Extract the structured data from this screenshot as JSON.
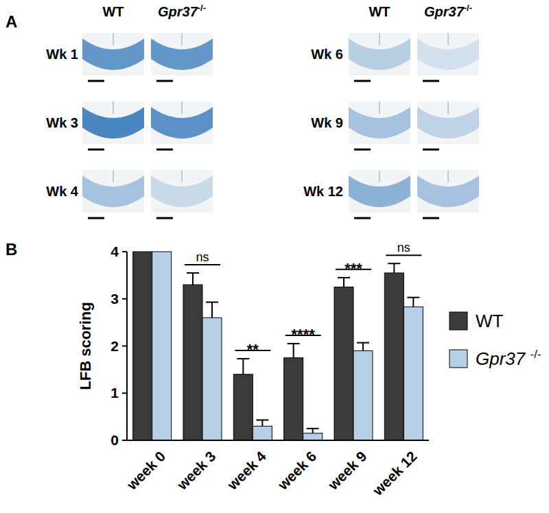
{
  "panel_labels": [
    "A",
    "B"
  ],
  "micrographs": {
    "columns": [
      "WT",
      "Gpr37-/-"
    ],
    "rows": [
      "Wk 1",
      "Wk 3",
      "Wk 4",
      "Wk 6",
      "Wk 9",
      "Wk 12"
    ]
  },
  "chart_data": {
    "type": "bar",
    "y_label": "LFB scoring",
    "categories": [
      "week 0",
      "week 3",
      "week 4",
      "week 6",
      "week 9",
      "week 12"
    ],
    "series": [
      {
        "name": "WT",
        "color": "#3a3a3a",
        "values": [
          4,
          3.3,
          1.4,
          1.75,
          3.25,
          3.55
        ],
        "errors": [
          0,
          0.25,
          0.33,
          0.3,
          0.2,
          0.2
        ]
      },
      {
        "name": "Gpr37 -/-",
        "color": "#b7d0e6",
        "values": [
          4,
          2.6,
          0.3,
          0.15,
          1.9,
          2.83
        ],
        "errors": [
          0,
          0.33,
          0.13,
          0.1,
          0.17,
          0.2
        ]
      }
    ],
    "annotations": [
      null,
      "ns",
      "**",
      "****",
      "***",
      "ns"
    ],
    "ylim": [
      0,
      4
    ],
    "yticks": [
      0,
      1,
      2,
      3,
      4
    ],
    "grid": false,
    "legend": "right"
  }
}
